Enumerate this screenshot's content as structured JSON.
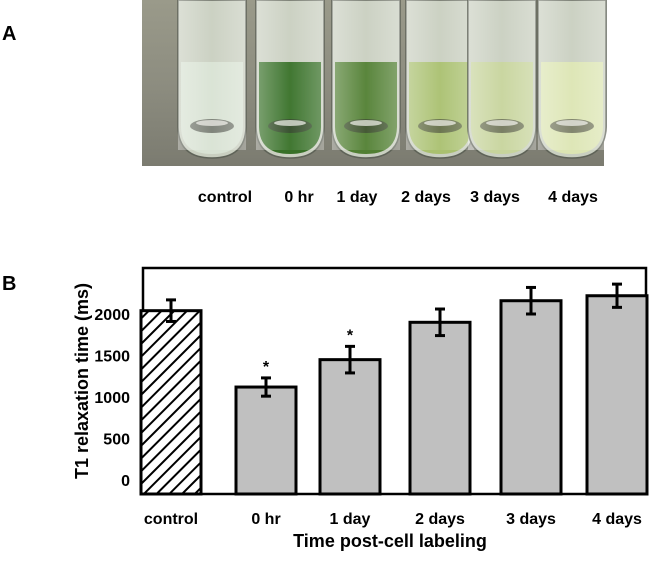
{
  "panel_a": {
    "letter": "A",
    "tube_labels": [
      "control",
      "0 hr",
      "1 day",
      "2 days",
      "3 days",
      "4 days"
    ],
    "tube_colors": [
      "#d9e3d4",
      "#2f6a1f",
      "#4b7a2a",
      "#a8bf6a",
      "#c7d49a",
      "#dde6b2"
    ]
  },
  "chart_data": {
    "panel_letter": "B",
    "type": "bar",
    "categories": [
      "control",
      "0 hr",
      "1 day",
      "2 days",
      "3 days",
      "4 days"
    ],
    "values": [
      2040,
      1120,
      1450,
      1900,
      2160,
      2220
    ],
    "errors": [
      130,
      110,
      160,
      160,
      160,
      140
    ],
    "significance": [
      "",
      "*",
      "*",
      "",
      "",
      ""
    ],
    "fills": [
      "hatched",
      "#c0c0c0",
      "#c0c0c0",
      "#c0c0c0",
      "#c0c0c0",
      "#c0c0c0"
    ],
    "xlabel": "Time post-cell labeling",
    "ylabel": "T1 relaxation time (ms)",
    "ylim": [
      0,
      2500
    ],
    "yticks": [
      0,
      500,
      1000,
      1500,
      2000
    ],
    "grid": false
  }
}
